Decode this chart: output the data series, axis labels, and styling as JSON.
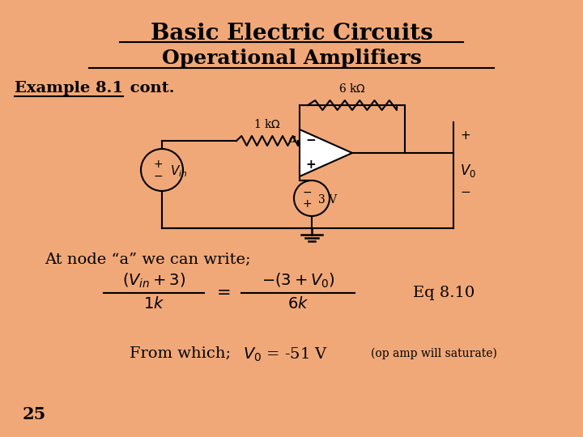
{
  "bg_color": "#F0A878",
  "title": "Basic Electric Circuits",
  "subtitle": "Operational Amplifiers",
  "example_label": "Example 8.1",
  "example_cont": " cont.",
  "node_text": "At node “a” we can write;",
  "eq_label": "Eq 8.10",
  "from_which_text": "From which;",
  "v0_text": "V₀ = -51 V",
  "op_amp_note": "(op amp will saturate)",
  "page_num": "25"
}
